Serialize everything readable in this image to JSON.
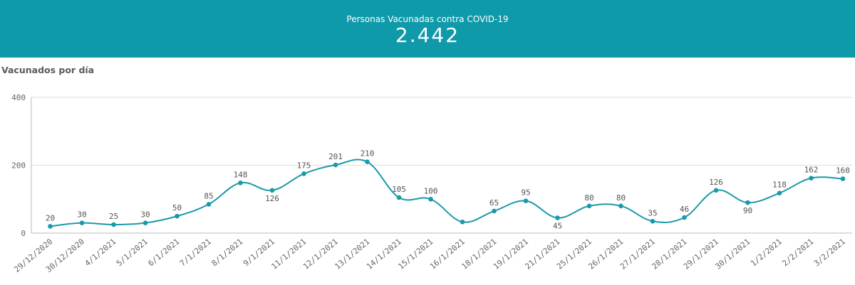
{
  "kpi": {
    "label": "Personas Vacunadas contra COVID-19",
    "value": "2.442"
  },
  "colors": {
    "banner": "#0f9aaa",
    "line": "#1a9aa8",
    "grid": "#dddddd"
  },
  "chart_data": {
    "type": "line",
    "title": "Vacunados por día",
    "xlabel": "",
    "ylabel": "",
    "ylim": [
      0,
      400
    ],
    "yticks": [
      0,
      200,
      400
    ],
    "grid": true,
    "categories": [
      "29/12/2020",
      "30/12/2020",
      "4/1/2021",
      "5/1/2021",
      "6/1/2021",
      "7/1/2021",
      "8/1/2021",
      "9/1/2021",
      "11/1/2021",
      "12/1/2021",
      "13/1/2021",
      "14/1/2021",
      "15/1/2021",
      "16/1/2021",
      "18/1/2021",
      "19/1/2021",
      "21/1/2021",
      "25/1/2021",
      "26/1/2021",
      "27/1/2021",
      "28/1/2021",
      "29/1/2021",
      "30/1/2021",
      "1/2/2021",
      "2/2/2021",
      "3/2/2021"
    ],
    "values": [
      20,
      30,
      25,
      30,
      50,
      85,
      148,
      126,
      175,
      201,
      210,
      105,
      100,
      33,
      65,
      95,
      45,
      80,
      80,
      35,
      46,
      126,
      90,
      118,
      162,
      160
    ],
    "data_labels": [
      "20",
      "30",
      "25",
      "30",
      "50",
      "85",
      "148",
      "126",
      "175",
      "201",
      "210",
      "105",
      "100",
      "",
      "65",
      "95",
      "45",
      "80",
      "80",
      "35",
      "46",
      "126",
      "90",
      "118",
      "162",
      "160"
    ]
  }
}
